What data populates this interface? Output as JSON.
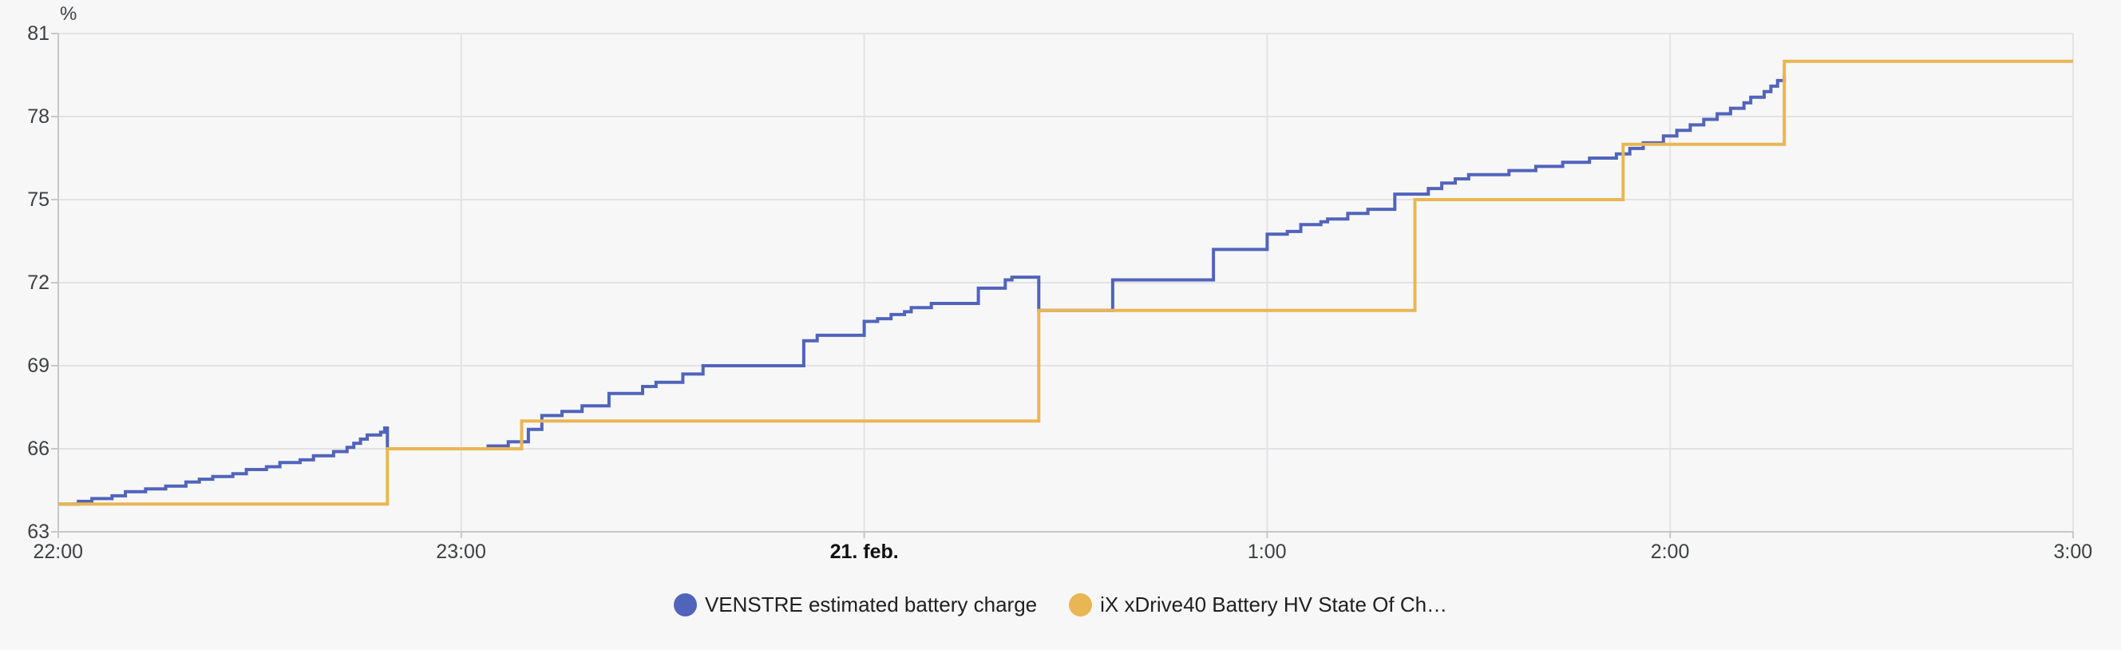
{
  "page": {
    "background_color": "#f7f7f7"
  },
  "chart_data": {
    "type": "line",
    "step_mode": "after",
    "title": "",
    "grid": true,
    "legend_position": "bottom",
    "y_axis": {
      "unit_label": "%",
      "min": 63,
      "max": 81,
      "ticks": [
        63,
        66,
        69,
        72,
        75,
        78,
        81
      ]
    },
    "x_axis": {
      "minutes_range": [
        0,
        300
      ],
      "ticks": [
        {
          "minutes": 0,
          "label": "22:00",
          "bold": false
        },
        {
          "minutes": 60,
          "label": "23:00",
          "bold": false
        },
        {
          "minutes": 120,
          "label": "21. feb.",
          "bold": true
        },
        {
          "minutes": 180,
          "label": "1:00",
          "bold": false
        },
        {
          "minutes": 240,
          "label": "2:00",
          "bold": false
        },
        {
          "minutes": 300,
          "label": "3:00",
          "bold": false
        }
      ]
    },
    "series": [
      {
        "name": "VENSTRE estimated battery charge",
        "color": "#5164bb",
        "points": [
          [
            0,
            64
          ],
          [
            3,
            64.1
          ],
          [
            5,
            64.2
          ],
          [
            8,
            64.3
          ],
          [
            10,
            64.45
          ],
          [
            13,
            64.55
          ],
          [
            16,
            64.65
          ],
          [
            19,
            64.8
          ],
          [
            21,
            64.9
          ],
          [
            23,
            65
          ],
          [
            26,
            65.1
          ],
          [
            28,
            65.25
          ],
          [
            31,
            65.35
          ],
          [
            33,
            65.5
          ],
          [
            36,
            65.6
          ],
          [
            38,
            65.75
          ],
          [
            41,
            65.9
          ],
          [
            43,
            66.05
          ],
          [
            44,
            66.2
          ],
          [
            45,
            66.35
          ],
          [
            46,
            66.5
          ],
          [
            48,
            66.6
          ],
          [
            48.6,
            66.75
          ],
          [
            49,
            66
          ],
          [
            64,
            66.1
          ],
          [
            67,
            66.25
          ],
          [
            70,
            66.7
          ],
          [
            72,
            67.2
          ],
          [
            75,
            67.35
          ],
          [
            78,
            67.55
          ],
          [
            82,
            68
          ],
          [
            87,
            68.25
          ],
          [
            89,
            68.4
          ],
          [
            93,
            68.7
          ],
          [
            96,
            69
          ],
          [
            111,
            69.9
          ],
          [
            113,
            70.1
          ],
          [
            120,
            70.6
          ],
          [
            122,
            70.7
          ],
          [
            124,
            70.85
          ],
          [
            126,
            70.95
          ],
          [
            127,
            71.1
          ],
          [
            130,
            71.25
          ],
          [
            137,
            71.8
          ],
          [
            141,
            72.1
          ],
          [
            142,
            72.2
          ],
          [
            146,
            71
          ],
          [
            157,
            72.1
          ],
          [
            172,
            73.2
          ],
          [
            180,
            73.75
          ],
          [
            183,
            73.85
          ],
          [
            185,
            74.1
          ],
          [
            188,
            74.2
          ],
          [
            189,
            74.3
          ],
          [
            192,
            74.5
          ],
          [
            195,
            74.65
          ],
          [
            199,
            75.2
          ],
          [
            204,
            75.4
          ],
          [
            206,
            75.6
          ],
          [
            208,
            75.75
          ],
          [
            210,
            75.9
          ],
          [
            216,
            76.05
          ],
          [
            220,
            76.2
          ],
          [
            224,
            76.35
          ],
          [
            228,
            76.5
          ],
          [
            232,
            76.65
          ],
          [
            234,
            76.85
          ],
          [
            236,
            77.05
          ],
          [
            239,
            77.3
          ],
          [
            241,
            77.5
          ],
          [
            243,
            77.7
          ],
          [
            245,
            77.9
          ],
          [
            247,
            78.1
          ],
          [
            249,
            78.3
          ],
          [
            251,
            78.5
          ],
          [
            252,
            78.7
          ],
          [
            254,
            78.9
          ],
          [
            255,
            79.1
          ],
          [
            256,
            79.3
          ],
          [
            257,
            79.5
          ]
        ]
      },
      {
        "name": "iX xDrive40 Battery HV State Of Ch…",
        "color": "#e9b654",
        "points": [
          [
            0,
            64
          ],
          [
            49,
            66
          ],
          [
            69,
            67
          ],
          [
            146,
            71
          ],
          [
            202,
            75
          ],
          [
            233,
            77
          ],
          [
            257,
            80
          ],
          [
            300,
            80
          ]
        ]
      }
    ],
    "colors": {
      "grid_line": "#e3e3e5",
      "axis_line": "#c7c7c9",
      "tick_text": "#3f4043",
      "bold_tick_text": "#0f0f0f",
      "legend_text": "#1f1f21",
      "background": "#f7f7f7"
    }
  }
}
